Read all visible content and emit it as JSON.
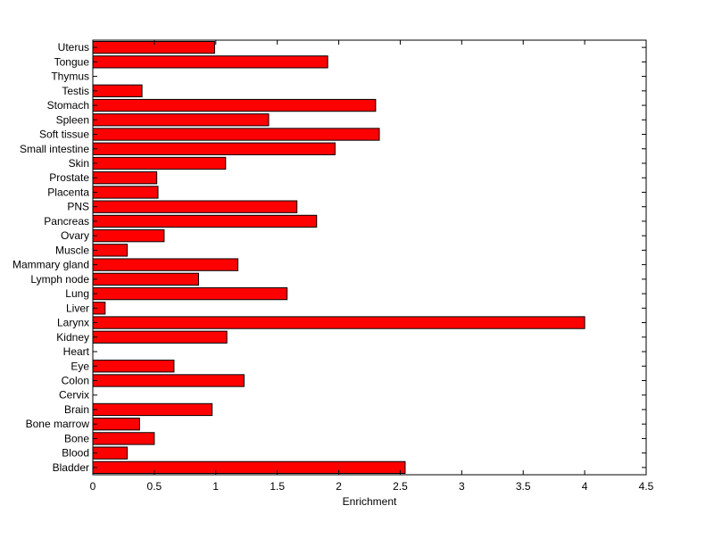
{
  "chart_data": {
    "type": "bar",
    "orientation": "horizontal",
    "title": "",
    "xlabel": "Enrichment",
    "ylabel": "",
    "xlim": [
      0,
      4.5
    ],
    "xticks": [
      "0",
      "0.5",
      "1",
      "1.5",
      "2",
      "2.5",
      "3",
      "3.5",
      "4",
      "4.5"
    ],
    "grid": false,
    "bar_color": "#ff0000",
    "edge_color": "#000000",
    "categories": [
      "Bladder",
      "Blood",
      "Bone",
      "Bone marrow",
      "Brain",
      "Cervix",
      "Colon",
      "Eye",
      "Heart",
      "Kidney",
      "Larynx",
      "Liver",
      "Lung",
      "Lymph node",
      "Mammary gland",
      "Muscle",
      "Ovary",
      "Pancreas",
      "PNS",
      "Placenta",
      "Prostate",
      "Skin",
      "Small intestine",
      "Soft tissue",
      "Spleen",
      "Stomach",
      "Testis",
      "Thymus",
      "Tongue",
      "Uterus"
    ],
    "values": [
      2.54,
      0.28,
      0.5,
      0.38,
      0.97,
      0,
      1.23,
      0.66,
      0,
      1.09,
      4.0,
      0.1,
      1.58,
      0.86,
      1.18,
      0.28,
      0.58,
      1.82,
      1.66,
      0.53,
      0.52,
      1.08,
      1.97,
      2.33,
      1.43,
      2.3,
      0.4,
      0,
      1.91,
      0.99
    ]
  }
}
